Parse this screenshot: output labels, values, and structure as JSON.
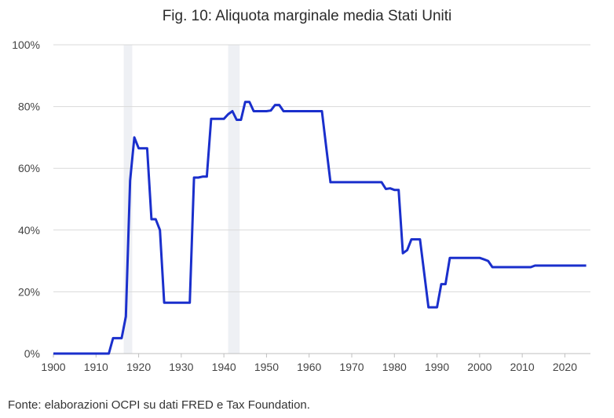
{
  "title": "Fig. 10: Aliquota marginale media Stati Uniti",
  "source": "Fonte: elaborazioni OCPI su dati FRED e Tax Foundation.",
  "chart_data": {
    "type": "line",
    "title": "Fig. 10: Aliquota marginale media Stati Uniti",
    "xlabel": "",
    "ylabel": "",
    "xlim": [
      1900,
      2026
    ],
    "ylim": [
      0,
      100
    ],
    "x_ticks": [
      "1900",
      "1910",
      "1920",
      "1930",
      "1940",
      "1950",
      "1960",
      "1970",
      "1980",
      "1990",
      "2000",
      "2010",
      "2020"
    ],
    "y_ticks": [
      "0%",
      "20%",
      "40%",
      "60%",
      "80%",
      "100%"
    ],
    "grid": "horizontal",
    "shaded_periods": [
      [
        1916.5,
        1918.5
      ],
      [
        1941,
        1943.7
      ]
    ],
    "series": [
      {
        "color": "#1a2fcc",
        "x": [
          1900,
          1913,
          1914,
          1915,
          1916,
          1917,
          1918,
          1919,
          1920,
          1921,
          1922,
          1923,
          1924,
          1925,
          1926,
          1930,
          1931,
          1932,
          1933,
          1934,
          1935,
          1936,
          1937,
          1938,
          1939,
          1940,
          1941,
          1942,
          1943,
          1944,
          1945,
          1946,
          1947,
          1948,
          1949,
          1950,
          1951,
          1952,
          1953,
          1954,
          1955,
          1963,
          1964,
          1965,
          1966,
          1975,
          1976,
          1977,
          1978,
          1979,
          1980,
          1981,
          1982,
          1983,
          1984,
          1985,
          1986,
          1987,
          1988,
          1989,
          1990,
          1991,
          1992,
          1993,
          1994,
          2000,
          2001,
          2002,
          2003,
          2004,
          2012,
          2013,
          2025
        ],
        "values": [
          0,
          0,
          5,
          5,
          5,
          12,
          56,
          70,
          66.5,
          66.5,
          66.5,
          43.5,
          43.5,
          40,
          16.5,
          16.5,
          16.5,
          16.5,
          57,
          57,
          57.3,
          57.3,
          76,
          76,
          76,
          76,
          77.5,
          78.5,
          75.7,
          75.7,
          81.5,
          81.5,
          78.5,
          78.5,
          78.5,
          78.5,
          78.7,
          80.5,
          80.5,
          78.5,
          78.5,
          78.5,
          67,
          55.5,
          55.5,
          55.5,
          55.5,
          55.5,
          53.3,
          53.5,
          53,
          53,
          32.5,
          33.5,
          37,
          37,
          37,
          26,
          15,
          15,
          15,
          22.5,
          22.5,
          31,
          31,
          31,
          30.5,
          30,
          28,
          28,
          28,
          28.5,
          28.5
        ]
      }
    ]
  }
}
